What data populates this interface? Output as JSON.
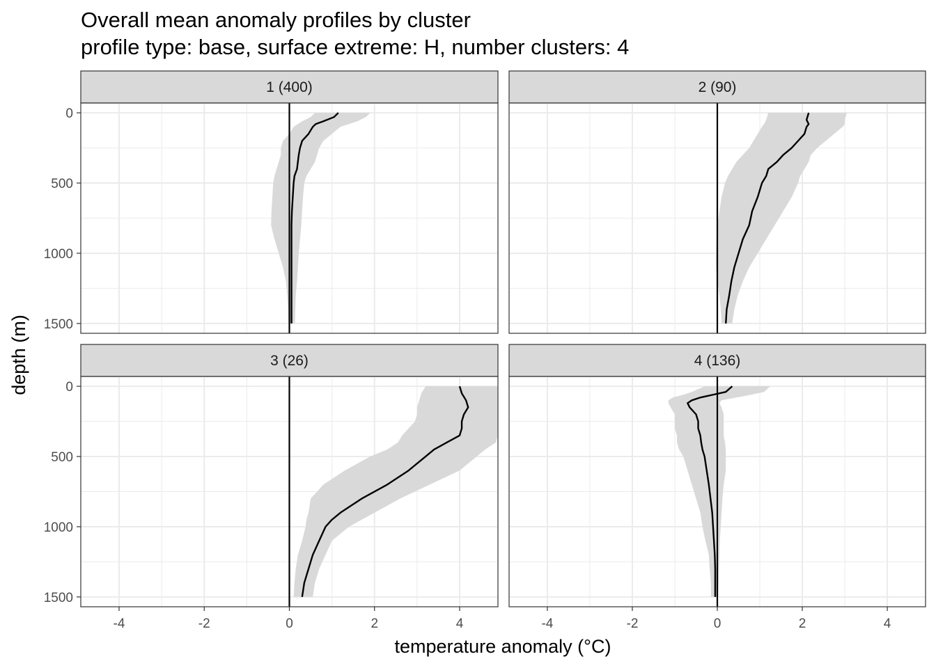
{
  "chart_data": {
    "type": "line",
    "title": "Overall mean anomaly profiles by cluster",
    "subtitle": "profile type: base, surface extreme: H, number clusters: 4",
    "xlabel": "temperature anomaly (°C)",
    "ylabel": "depth (m)",
    "xlim": [
      -4.9,
      4.9
    ],
    "ylim": [
      1570,
      -70
    ],
    "y_reversed": true,
    "x_ticks": [
      -4,
      -2,
      0,
      2,
      4
    ],
    "x_tick_labels": [
      "-4",
      "-2",
      "0",
      "2",
      "4"
    ],
    "y_ticks": [
      0,
      500,
      1000,
      1500
    ],
    "y_tick_labels": [
      "0",
      "500",
      "1000",
      "1500"
    ],
    "grid": true,
    "reference_line_x": 0,
    "line_color": "#000000",
    "ribbon_color": "#d9d9d9",
    "strip_fill": "#d9d9d9",
    "panels": [
      {
        "label": "1 (400)",
        "depth": [
          0,
          30,
          60,
          80,
          100,
          150,
          200,
          250,
          300,
          350,
          400,
          450,
          500,
          600,
          700,
          800,
          900,
          1000,
          1100,
          1200,
          1300,
          1400,
          1500
        ],
        "mean": [
          1.15,
          1.05,
          0.8,
          0.62,
          0.55,
          0.45,
          0.3,
          0.25,
          0.22,
          0.2,
          0.18,
          0.12,
          0.1,
          0.08,
          0.06,
          0.05,
          0.05,
          0.05,
          0.05,
          0.05,
          0.05,
          0.05,
          0.05
        ],
        "lower": [
          0.6,
          0.5,
          0.3,
          0.2,
          0.1,
          0.0,
          -0.15,
          -0.2,
          -0.2,
          -0.25,
          -0.3,
          -0.35,
          -0.38,
          -0.4,
          -0.42,
          -0.43,
          -0.35,
          -0.25,
          -0.15,
          -0.08,
          -0.05,
          -0.03,
          -0.02
        ],
        "upper": [
          1.9,
          1.8,
          1.6,
          1.4,
          1.2,
          1.0,
          0.8,
          0.7,
          0.65,
          0.6,
          0.5,
          0.4,
          0.35,
          0.32,
          0.3,
          0.28,
          0.25,
          0.22,
          0.2,
          0.18,
          0.15,
          0.14,
          0.13
        ]
      },
      {
        "label": "2 (90)",
        "depth": [
          0,
          50,
          80,
          100,
          150,
          200,
          250,
          300,
          350,
          400,
          450,
          500,
          600,
          700,
          800,
          900,
          1000,
          1100,
          1200,
          1300,
          1400,
          1500
        ],
        "mean": [
          2.15,
          2.1,
          2.15,
          2.1,
          2.05,
          1.9,
          1.75,
          1.55,
          1.4,
          1.2,
          1.15,
          1.05,
          0.95,
          0.82,
          0.75,
          0.6,
          0.5,
          0.4,
          0.33,
          0.28,
          0.22,
          0.2
        ],
        "lower": [
          1.2,
          1.15,
          1.1,
          1.05,
          0.95,
          0.85,
          0.75,
          0.6,
          0.45,
          0.35,
          0.25,
          0.18,
          0.1,
          0.05,
          0.0,
          -0.02,
          -0.03,
          -0.03,
          0.0,
          0.05,
          0.08,
          0.1
        ],
        "upper": [
          3.05,
          3.0,
          3.0,
          2.95,
          2.75,
          2.55,
          2.35,
          2.2,
          2.15,
          2.05,
          1.95,
          1.9,
          1.75,
          1.55,
          1.35,
          1.15,
          0.95,
          0.75,
          0.6,
          0.48,
          0.4,
          0.35
        ]
      },
      {
        "label": "3 (26)",
        "depth": [
          0,
          50,
          100,
          150,
          200,
          250,
          300,
          350,
          400,
          450,
          500,
          600,
          700,
          800,
          900,
          950,
          1000,
          1100,
          1200,
          1300,
          1400,
          1500
        ],
        "mean": [
          4.0,
          4.05,
          4.15,
          4.2,
          4.1,
          4.05,
          4.05,
          4.0,
          3.7,
          3.4,
          3.2,
          2.8,
          2.3,
          1.7,
          1.2,
          1.0,
          0.85,
          0.7,
          0.55,
          0.45,
          0.35,
          0.3
        ],
        "lower": [
          3.2,
          3.1,
          3.05,
          3.0,
          3.0,
          2.95,
          2.8,
          2.65,
          2.55,
          2.3,
          1.9,
          1.3,
          0.8,
          0.5,
          0.45,
          0.4,
          0.38,
          0.3,
          0.2,
          0.15,
          0.12,
          0.1
        ],
        "upper": [
          4.9,
          4.9,
          4.9,
          4.9,
          4.9,
          4.9,
          4.9,
          4.9,
          4.85,
          4.6,
          4.4,
          4.0,
          3.3,
          2.6,
          2.0,
          1.7,
          1.4,
          1.0,
          0.85,
          0.7,
          0.6,
          0.55
        ]
      },
      {
        "label": "4 (136)",
        "depth": [
          0,
          40,
          60,
          80,
          100,
          120,
          150,
          200,
          250,
          300,
          350,
          400,
          450,
          500,
          600,
          700,
          800,
          900,
          1000,
          1100,
          1200,
          1300,
          1400,
          1500
        ],
        "mean": [
          0.35,
          0.2,
          -0.1,
          -0.4,
          -0.6,
          -0.7,
          -0.65,
          -0.5,
          -0.45,
          -0.45,
          -0.4,
          -0.38,
          -0.35,
          -0.3,
          -0.25,
          -0.2,
          -0.16,
          -0.12,
          -0.1,
          -0.08,
          -0.06,
          -0.05,
          -0.05,
          -0.05
        ],
        "lower": [
          -0.3,
          -0.6,
          -0.8,
          -1.05,
          -1.15,
          -1.15,
          -1.1,
          -1.0,
          -1.0,
          -1.0,
          -0.95,
          -0.95,
          -0.9,
          -0.8,
          -0.7,
          -0.6,
          -0.5,
          -0.4,
          -0.35,
          -0.28,
          -0.2,
          -0.18,
          -0.15,
          -0.15
        ],
        "upper": [
          1.25,
          1.1,
          0.8,
          0.45,
          0.1,
          0.05,
          0.1,
          0.15,
          0.15,
          0.15,
          0.15,
          0.18,
          0.2,
          0.2,
          0.2,
          0.15,
          0.12,
          0.1,
          0.08,
          0.06,
          0.05,
          0.04,
          0.03,
          0.02
        ]
      }
    ]
  }
}
